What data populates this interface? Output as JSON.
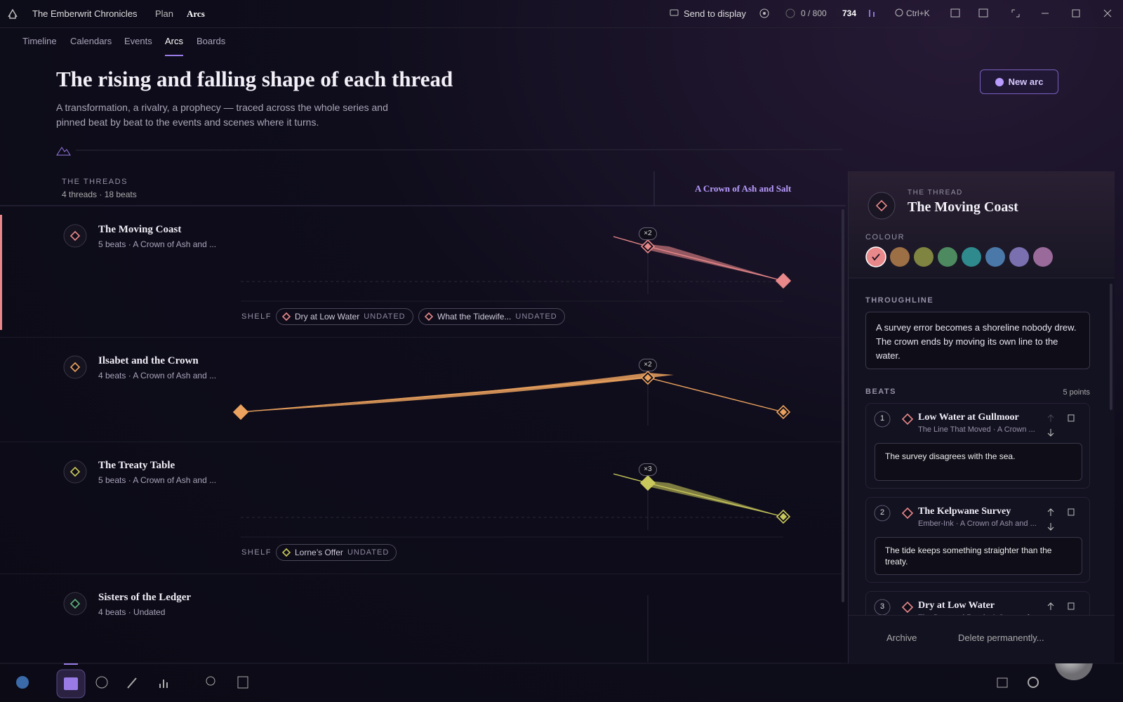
{
  "topbar": {
    "project": "The Emberwrit Chronicles",
    "crumbs": [
      "Plan",
      "Arcs"
    ],
    "send": "Send to display",
    "words": "0 / 800",
    "count": "734",
    "search": "Ctrl+K"
  },
  "tabs": [
    "Timeline",
    "Calendars",
    "Events",
    "Arcs",
    "Boards"
  ],
  "active_tab": 3,
  "header": {
    "title": "The rising and falling shape of each thread",
    "description": "A transformation, a rivalry, a prophecy — traced across the whole series and pinned beat by beat to the events and scenes where it turns.",
    "new_arc": "New arc"
  },
  "threads": {
    "heading": "THE THREADS",
    "summary": "4 threads · 18 beats",
    "book": "A Crown of Ash and Salt",
    "shelf_label": "SHELF",
    "items": [
      {
        "name": "The Moving Coast",
        "meta": "5 beats · A Crown of Ash and ...",
        "color": "#e8888a",
        "badge": "×2",
        "shelf": [
          {
            "title": "Dry at Low Water",
            "status": "UNDATED"
          },
          {
            "title": "What the Tidewife...",
            "status": "UNDATED"
          }
        ]
      },
      {
        "name": "Ilsabet and the Crown",
        "meta": "4 beats · A Crown of Ash and ...",
        "color": "#eba25e",
        "badge": "×2"
      },
      {
        "name": "The Treaty Table",
        "meta": "5 beats · A Crown of Ash and ...",
        "color": "#c9c85c",
        "badge": "×3",
        "shelf": [
          {
            "title": "Lorne’s Offer",
            "status": "UNDATED"
          }
        ]
      },
      {
        "name": "Sisters of the Ledger",
        "meta": "4 beats · Undated",
        "color": "#5fb27c"
      }
    ]
  },
  "panel": {
    "eyebrow": "THE THREAD",
    "name": "The Moving Coast",
    "colour_label": "COLOUR",
    "colours": [
      "#e8888a",
      "#9c6f45",
      "#7f8440",
      "#4d8a5f",
      "#2f8a8e",
      "#4a78a8",
      "#7a70b0",
      "#9a6a9a"
    ],
    "throughline_label": "THROUGHLINE",
    "throughline": "A survey error becomes a shoreline nobody drew. The crown ends by moving its own line to the water.",
    "beats_label": "BEATS",
    "beats_count": "5 points",
    "beats": [
      {
        "number": 1,
        "title": "Low Water at Gullmoor",
        "meta": "The Line That Moved · A Crown ...",
        "note": "The survey disagrees with the sea."
      },
      {
        "number": 2,
        "title": "The Kelpwane Survey",
        "meta": "Ember-Ink · A Crown of Ash and ...",
        "note": "The tide keeps something straighter than the treaty."
      },
      {
        "number": 3,
        "title": "Dry at Low Water",
        "meta": "The Drowned Road · A Crown of..."
      }
    ],
    "archive": "Archive",
    "delete": "Delete permanently..."
  }
}
